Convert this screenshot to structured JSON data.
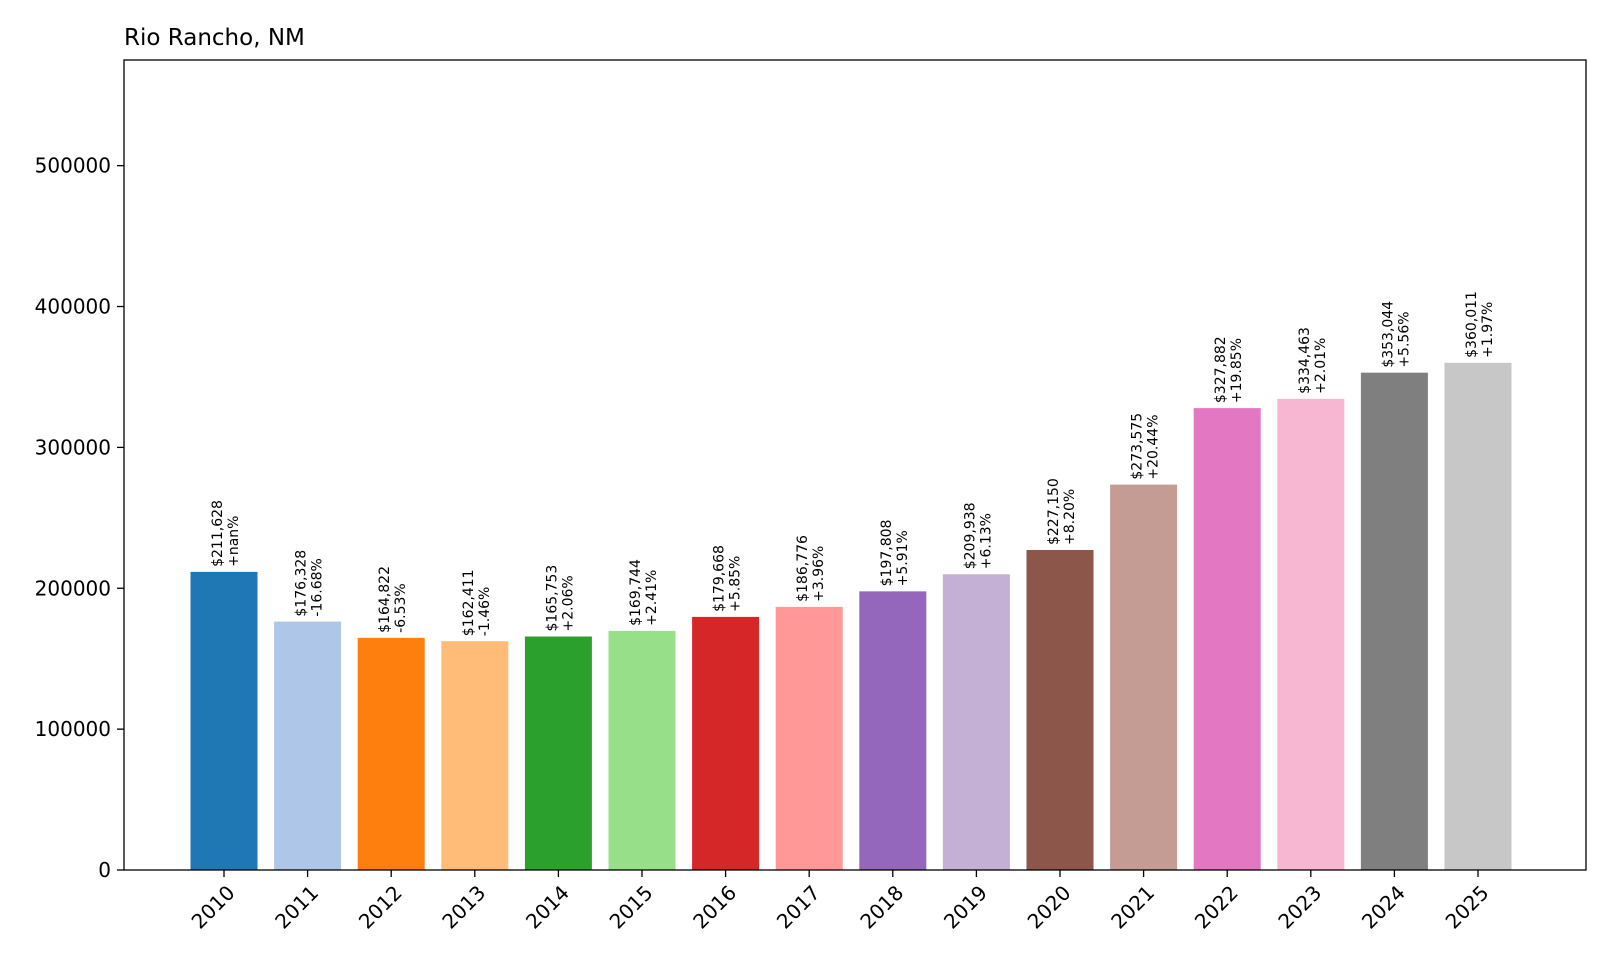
{
  "chart_data": {
    "type": "bar",
    "title": "Rio Rancho, NM",
    "xlabel": "",
    "ylabel": "",
    "ylim": [
      0,
      575000
    ],
    "yticks": [
      0,
      100000,
      200000,
      300000,
      400000,
      500000
    ],
    "ytick_labels": [
      "0",
      "100000",
      "200000",
      "300000",
      "400000",
      "500000"
    ],
    "grid": false,
    "categories": [
      "2010",
      "2011",
      "2012",
      "2013",
      "2014",
      "2015",
      "2016",
      "2017",
      "2018",
      "2019",
      "2020",
      "2021",
      "2022",
      "2023",
      "2024",
      "2025"
    ],
    "values": [
      211628,
      176328,
      164822,
      162411,
      165753,
      169744,
      179668,
      186776,
      197808,
      209938,
      227150,
      273575,
      327882,
      334463,
      353044,
      360011
    ],
    "value_labels": [
      "$211,628",
      "$176,328",
      "$164,822",
      "$162,411",
      "$165,753",
      "$169,744",
      "$179,668",
      "$186,776",
      "$197,808",
      "$209,938",
      "$227,150",
      "$273,575",
      "$327,882",
      "$334,463",
      "$353,044",
      "$360,011"
    ],
    "change_labels": [
      "+nan%",
      "-16.68%",
      "-6.53%",
      "-1.46%",
      "+2.06%",
      "+2.41%",
      "+5.85%",
      "+3.96%",
      "+5.91%",
      "+6.13%",
      "+8.20%",
      "+20.44%",
      "+19.85%",
      "+2.01%",
      "+5.56%",
      "+1.97%"
    ],
    "colors": [
      "#1f77b4",
      "#aec7e8",
      "#ff7f0e",
      "#ffbb78",
      "#2ca02c",
      "#98df8a",
      "#d62728",
      "#ff9896",
      "#9467bd",
      "#c5b0d5",
      "#8c564b",
      "#c49c94",
      "#e377c2",
      "#f7b6d2",
      "#7f7f7f",
      "#c7c7c7"
    ]
  }
}
